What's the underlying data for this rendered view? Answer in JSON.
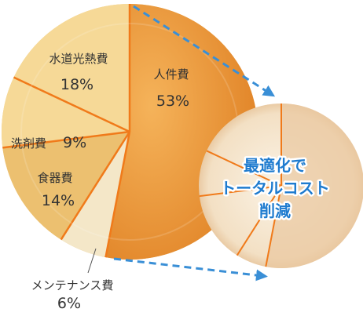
{
  "chart_data": {
    "type": "pie",
    "categories": [
      "人件費",
      "メンテナンス費",
      "食器費",
      "洗剤費",
      "水道光熱費"
    ],
    "values": [
      53,
      6,
      14,
      9,
      18
    ],
    "value_labels": [
      "53%",
      "6%",
      "14%",
      "9%",
      "18%"
    ],
    "second_plate_text": [
      "最適化で",
      "トータルコスト",
      "削減"
    ],
    "colors": {
      "labor": "#e88f2c",
      "labor_light": "#f2a94e",
      "plate_light": "#f6d997",
      "plate_mid": "#ecc070",
      "maintenance": "#f4e7c8",
      "divider": "#f07a1a",
      "arrow": "#3a8fd6",
      "text": "#333333",
      "headline": "#1e7bcf"
    }
  }
}
